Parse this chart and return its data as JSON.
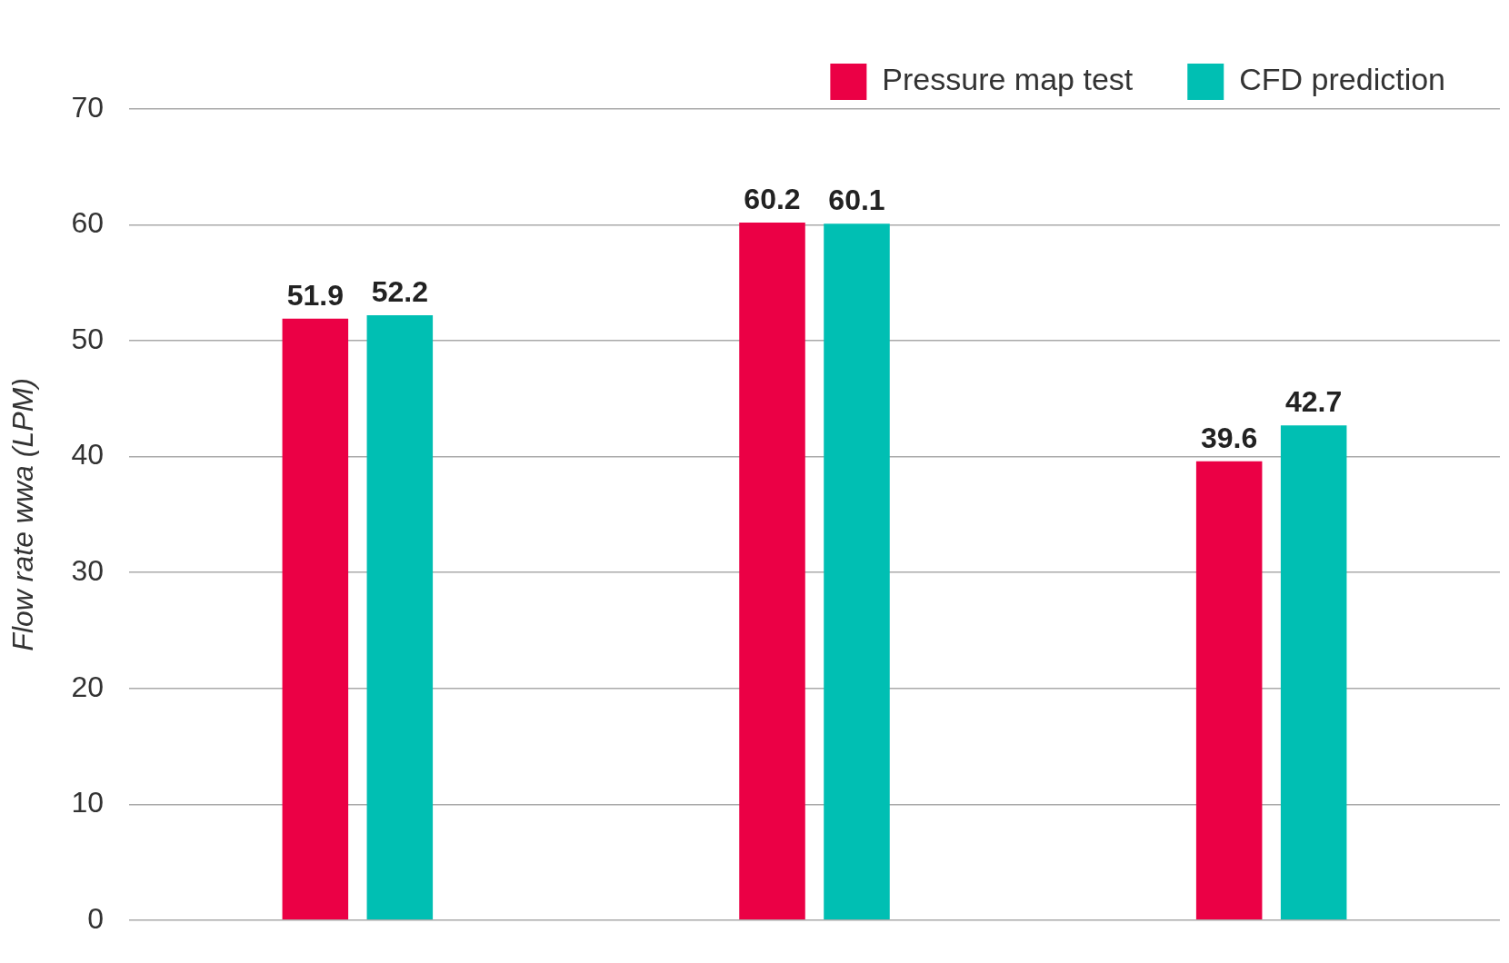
{
  "chart_data": {
    "type": "bar",
    "ylabel": "Flow rate wwa (LPM)",
    "categories": [
      null,
      null,
      null
    ],
    "series": [
      {
        "name": "Pressure map test",
        "color": "#eb0045",
        "values": [
          51.9,
          60.2,
          39.6
        ]
      },
      {
        "name": "CFD prediction",
        "color": "#00bfb3",
        "values": [
          52.2,
          60.1,
          42.7
        ]
      }
    ],
    "ylim": [
      0,
      70
    ],
    "yticks": [
      0,
      10,
      20,
      30,
      40,
      50,
      60,
      70
    ],
    "grid": "y",
    "legend": "top right",
    "data_labels": true
  }
}
